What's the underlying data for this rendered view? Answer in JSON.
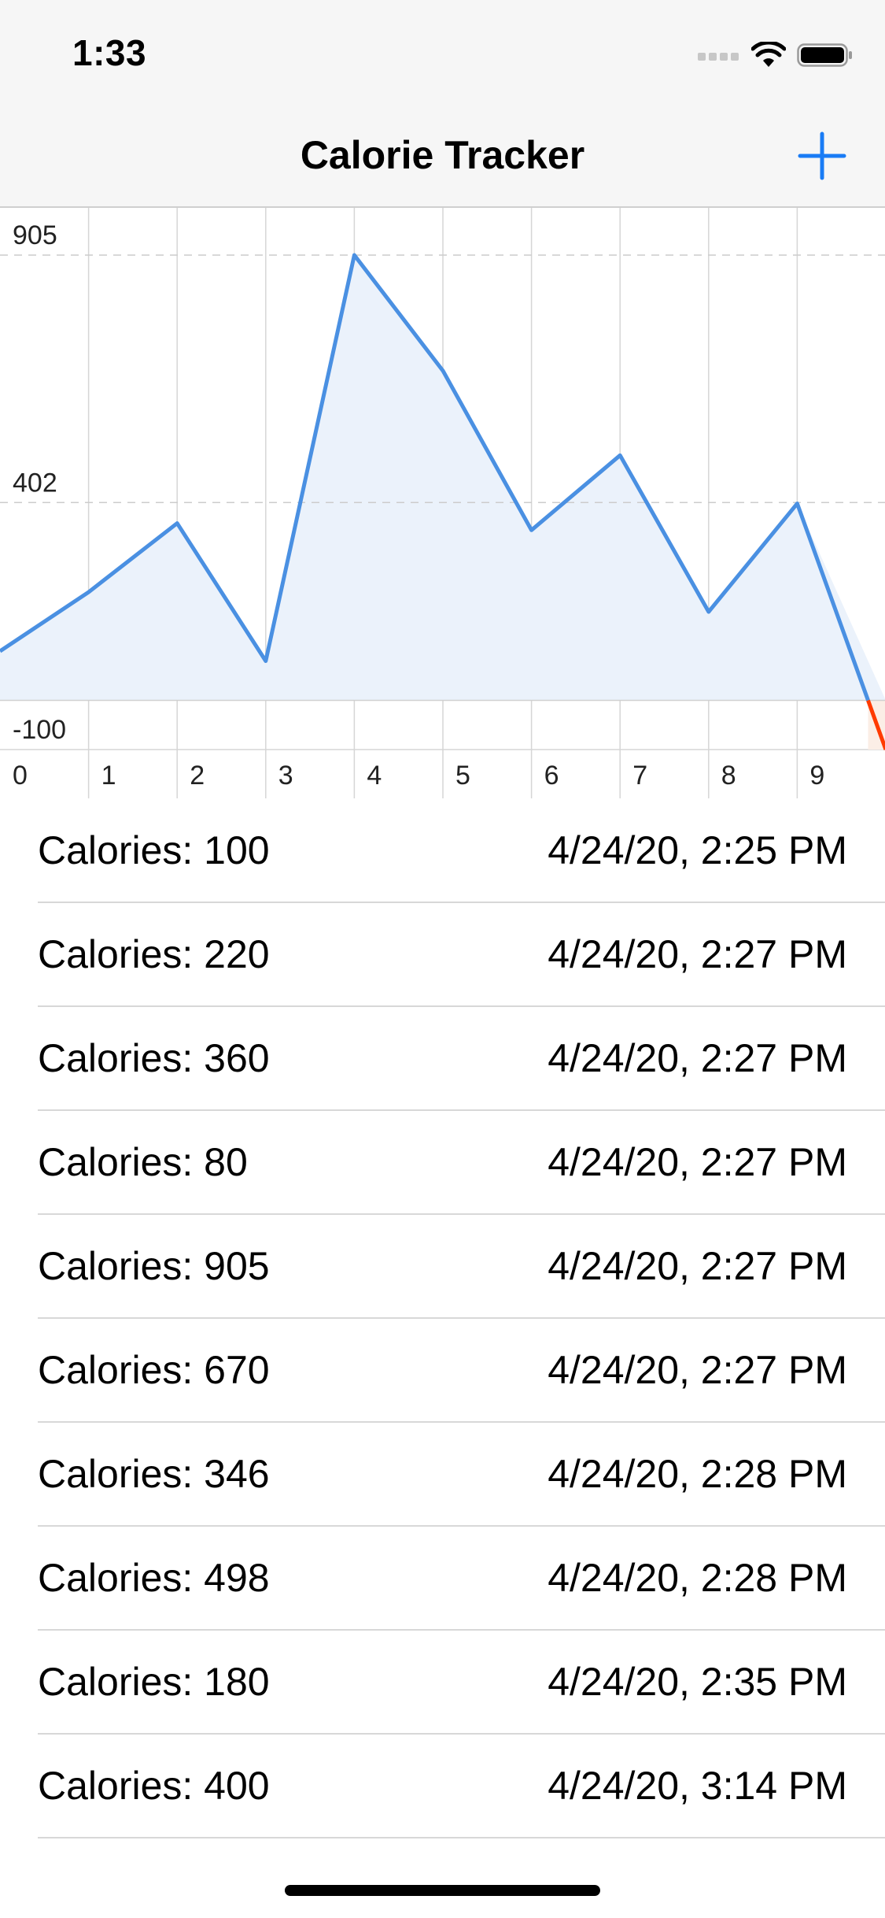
{
  "status_bar": {
    "time": "1:33"
  },
  "nav": {
    "title": "Calorie Tracker",
    "add_icon": "plus-icon"
  },
  "colors": {
    "accent": "#1a7cf5",
    "line": "#4a90e2",
    "fill": "#ebf2fb",
    "negative": "#ff3b00"
  },
  "chart_data": {
    "type": "area",
    "x": [
      0,
      1,
      2,
      3,
      4,
      5,
      6,
      7,
      8,
      9,
      10
    ],
    "values": [
      100,
      220,
      360,
      80,
      905,
      670,
      346,
      498,
      180,
      400,
      -100
    ],
    "y_ticks": [
      "905",
      "402",
      "-100"
    ],
    "x_ticks": [
      "0",
      "1",
      "2",
      "3",
      "4",
      "5",
      "6",
      "7",
      "8",
      "9"
    ],
    "ylim": [
      -100,
      905
    ],
    "grid": true
  },
  "entries": [
    {
      "label": "Calories: 100",
      "date": "4/24/20, 2:25 PM"
    },
    {
      "label": "Calories: 220",
      "date": "4/24/20, 2:27 PM"
    },
    {
      "label": "Calories: 360",
      "date": "4/24/20, 2:27 PM"
    },
    {
      "label": "Calories: 80",
      "date": "4/24/20, 2:27 PM"
    },
    {
      "label": "Calories: 905",
      "date": "4/24/20, 2:27 PM"
    },
    {
      "label": "Calories: 670",
      "date": "4/24/20, 2:27 PM"
    },
    {
      "label": "Calories: 346",
      "date": "4/24/20, 2:28 PM"
    },
    {
      "label": "Calories: 498",
      "date": "4/24/20, 2:28 PM"
    },
    {
      "label": "Calories: 180",
      "date": "4/24/20, 2:35 PM"
    },
    {
      "label": "Calories: 400",
      "date": "4/24/20, 3:14 PM"
    }
  ]
}
